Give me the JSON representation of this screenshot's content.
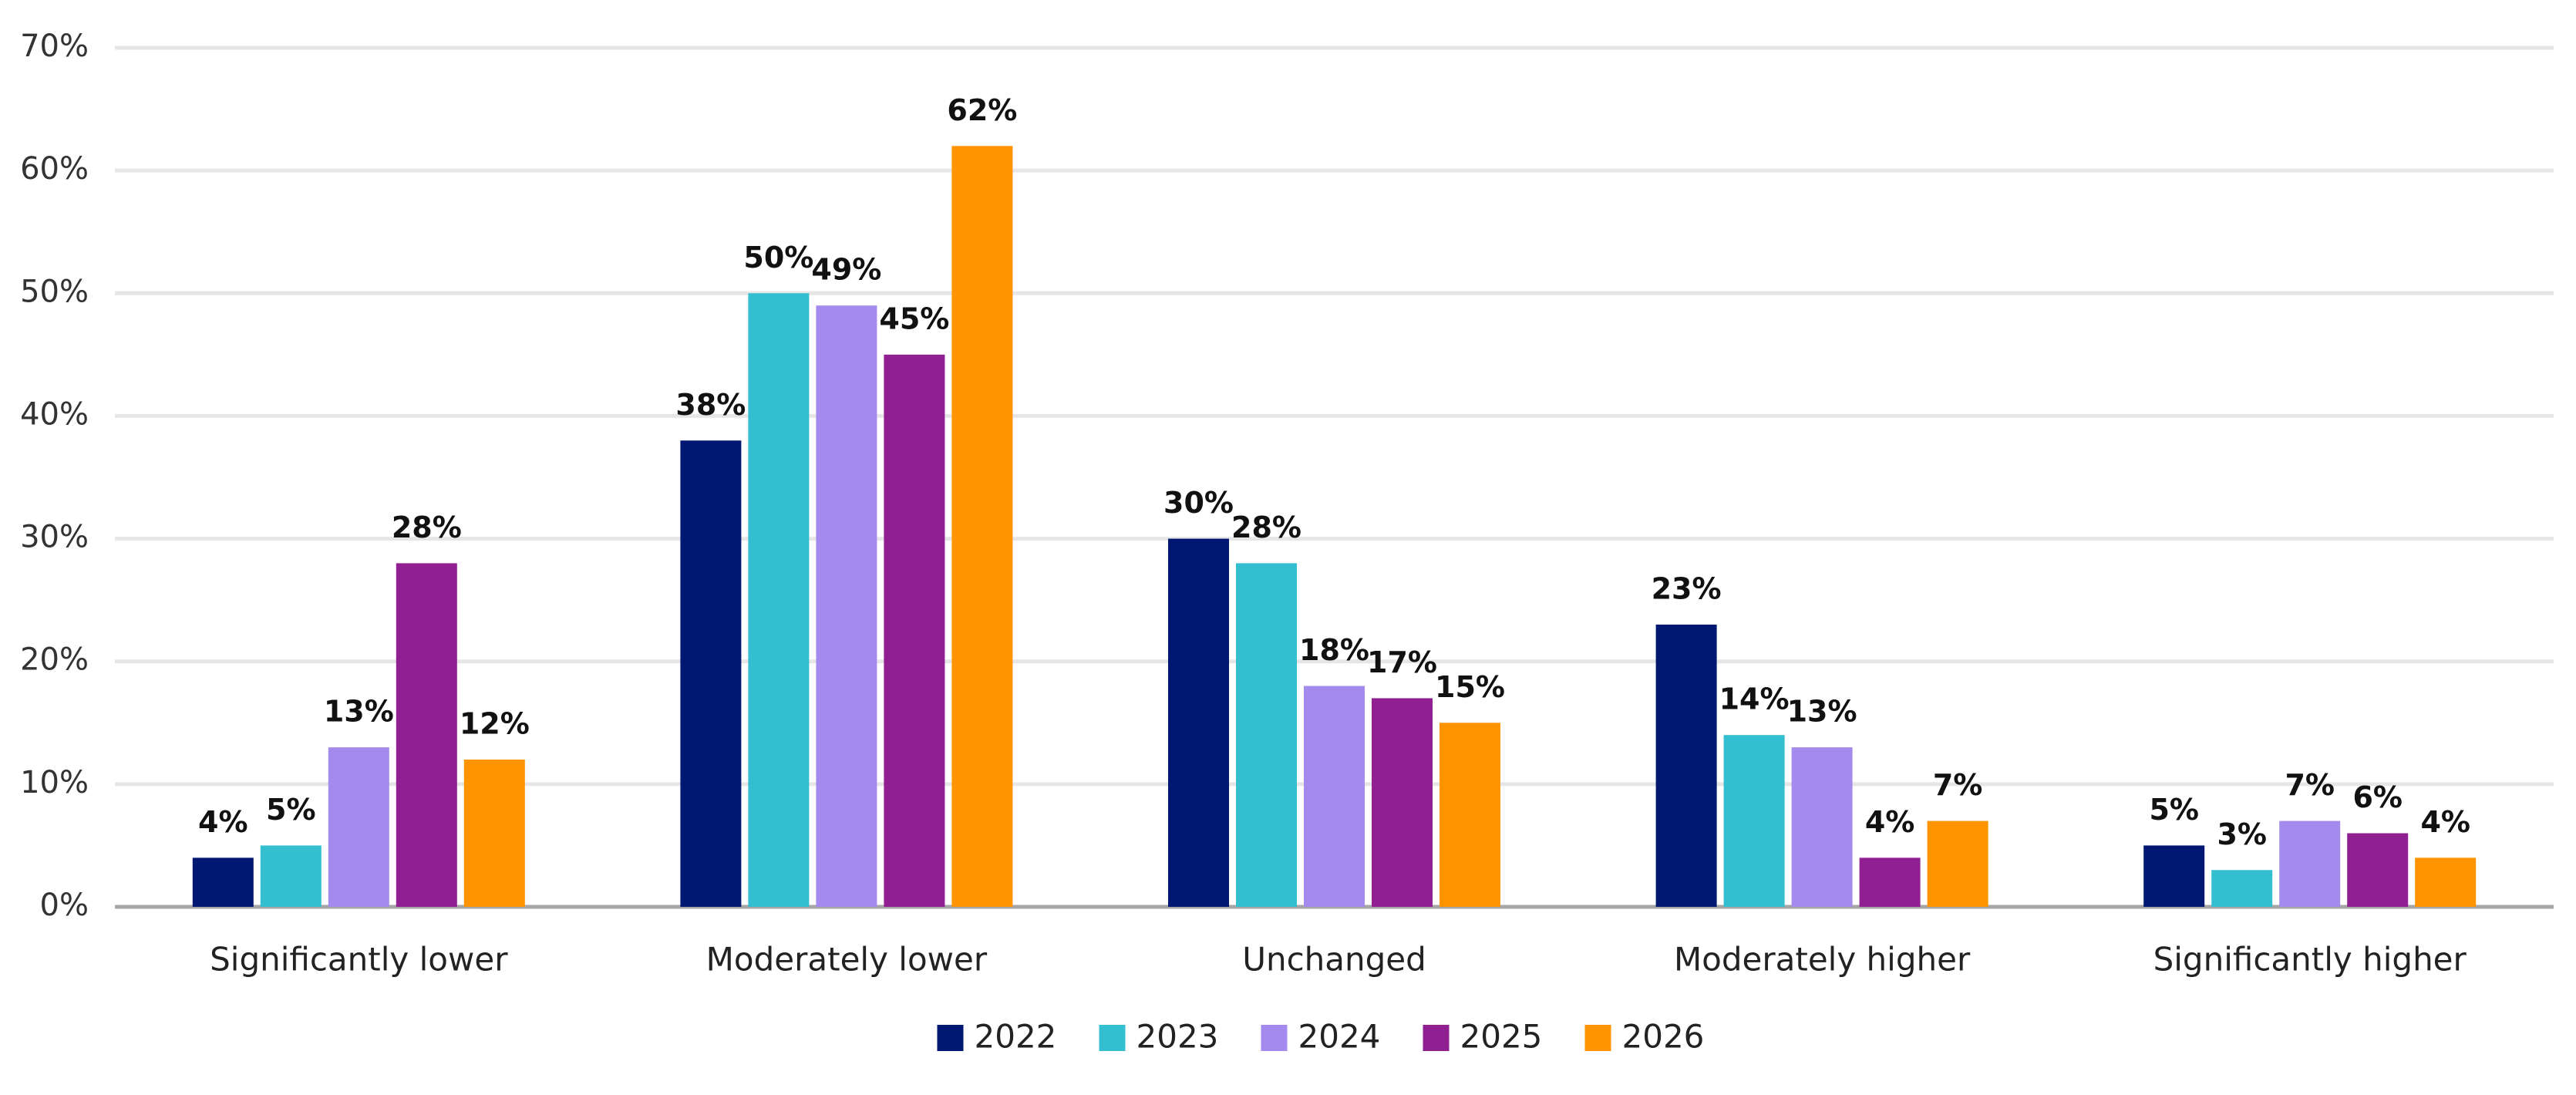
{
  "chart_data": {
    "type": "bar",
    "categories": [
      "Significantly lower",
      "Moderately lower",
      "Unchanged",
      "Moderately higher",
      "Significantly higher"
    ],
    "series": [
      {
        "name": "2022",
        "color": "#001871",
        "values": [
          4,
          38,
          30,
          23,
          5
        ],
        "value_labels": [
          "4%",
          "38%",
          "30%",
          "23%",
          "5%"
        ]
      },
      {
        "name": "2023",
        "color": "#33bfcf",
        "values": [
          5,
          50,
          28,
          14,
          3
        ],
        "value_labels": [
          "5%",
          "50%",
          "28%",
          "14%",
          "3%"
        ]
      },
      {
        "name": "2024",
        "color": "#a58aee",
        "values": [
          13,
          49,
          18,
          13,
          7
        ],
        "value_labels": [
          "13%",
          "49%",
          "18%",
          "13%",
          "7%"
        ]
      },
      {
        "name": "2025",
        "color": "#901f91",
        "values": [
          28,
          45,
          17,
          4,
          6
        ],
        "value_labels": [
          "28%",
          "45%",
          "17%",
          "4%",
          "6%"
        ]
      },
      {
        "name": "2026",
        "color": "#ff9300",
        "values": [
          12,
          62,
          15,
          7,
          4
        ],
        "value_labels": [
          "12%",
          "62%",
          "15%",
          "7%",
          "4%"
        ]
      }
    ],
    "ylim": [
      0,
      70
    ],
    "yticks": [
      {
        "value": 0,
        "label": "0%"
      },
      {
        "value": 10,
        "label": "10%"
      },
      {
        "value": 20,
        "label": "20%"
      },
      {
        "value": 30,
        "label": "30%"
      },
      {
        "value": 40,
        "label": "40%"
      },
      {
        "value": 50,
        "label": "50%"
      },
      {
        "value": 60,
        "label": "60%"
      },
      {
        "value": 70,
        "label": "70%"
      }
    ],
    "grid": true,
    "legend": "bottom"
  }
}
